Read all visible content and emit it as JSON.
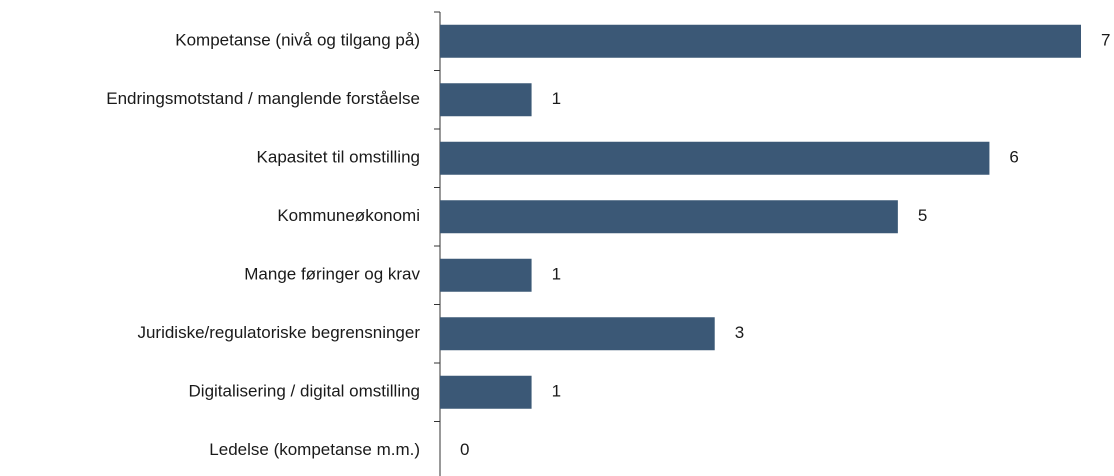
{
  "chart_data": {
    "type": "bar",
    "orientation": "horizontal",
    "categories": [
      "Kompetanse (nivå og tilgang på)",
      "Endringsmotstand / manglende forståelse",
      "Kapasitet til omstilling",
      "Kommuneøkonomi",
      "Mange føringer og krav",
      "Juridiske/regulatoriske begrensninger",
      "Digitalisering / digital omstilling",
      "Ledelse (kompetanse m.m.)"
    ],
    "values": [
      7,
      1,
      6,
      5,
      1,
      3,
      1,
      0
    ],
    "color": "#3b5876"
  }
}
